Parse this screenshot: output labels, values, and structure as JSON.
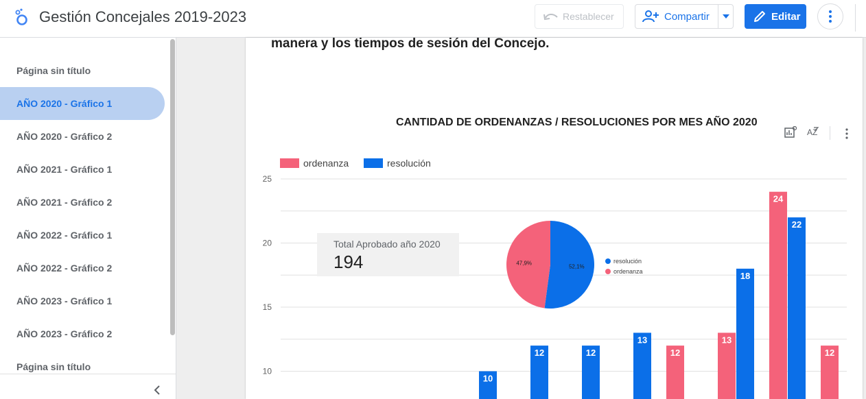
{
  "header": {
    "title": "Gestión Concejales 2019-2023",
    "reset_label": "Restablecer",
    "share_label": "Compartir",
    "edit_label": "Editar"
  },
  "sidebar": {
    "items": [
      {
        "label": "Página sin título",
        "active": false
      },
      {
        "label": "AÑO 2020 - Gráfico 1",
        "active": true
      },
      {
        "label": "AÑO 2020 - Gráfico 2",
        "active": false
      },
      {
        "label": "AÑO 2021 - Gráfico 1",
        "active": false
      },
      {
        "label": "AÑO 2021 - Gráfico 2",
        "active": false
      },
      {
        "label": "AÑO 2022 - Gráfico 1",
        "active": false
      },
      {
        "label": "AÑO 2022 - Gráfico 2",
        "active": false
      },
      {
        "label": "AÑO 2023 - Gráfico 1",
        "active": false
      },
      {
        "label": "AÑO 2023 - Gráfico 2",
        "active": false
      },
      {
        "label": "Página sin título",
        "active": false
      }
    ]
  },
  "report": {
    "intro_text": "manera y los tiempos de sesión del Concejo.",
    "scorecard": {
      "label": "Total Aprobado año 2020",
      "value": "194"
    }
  },
  "colors": {
    "ordenanza": "#f4627a",
    "resolucion": "#0b6fe8",
    "accent": "#1a73e8"
  },
  "icons": [
    "logo-icon",
    "undo-icon",
    "add-person-icon",
    "chevron-down-icon",
    "pencil-icon",
    "more-vert-icon",
    "chevron-left-icon",
    "chart-settings-icon",
    "sort-az-icon"
  ],
  "chart_data": [
    {
      "type": "bar",
      "title": "CANTIDAD DE ORDENANZAS / RESOLUCIONES POR MES AÑO 2020",
      "legend_position": "top-left",
      "grid": true,
      "y_ticks": [
        "25",
        "20",
        "15",
        "10"
      ],
      "ylim_visible": [
        8,
        25
      ],
      "series": [
        {
          "name": "ordenanza",
          "color": "#f4627a",
          "values": [
            null,
            null,
            null,
            null,
            null,
            null,
            null,
            12,
            13,
            24,
            12
          ]
        },
        {
          "name": "resolución",
          "color": "#0b6fe8",
          "values": [
            null,
            null,
            null,
            10,
            12,
            12,
            13,
            null,
            18,
            22,
            null
          ]
        }
      ]
    },
    {
      "type": "pie",
      "slices": [
        {
          "name": "resolución",
          "value": 52.1,
          "label": "52,1%",
          "color": "#0b6fe8"
        },
        {
          "name": "ordenanza",
          "value": 47.9,
          "label": "47,9%",
          "color": "#f4627a"
        }
      ]
    }
  ]
}
